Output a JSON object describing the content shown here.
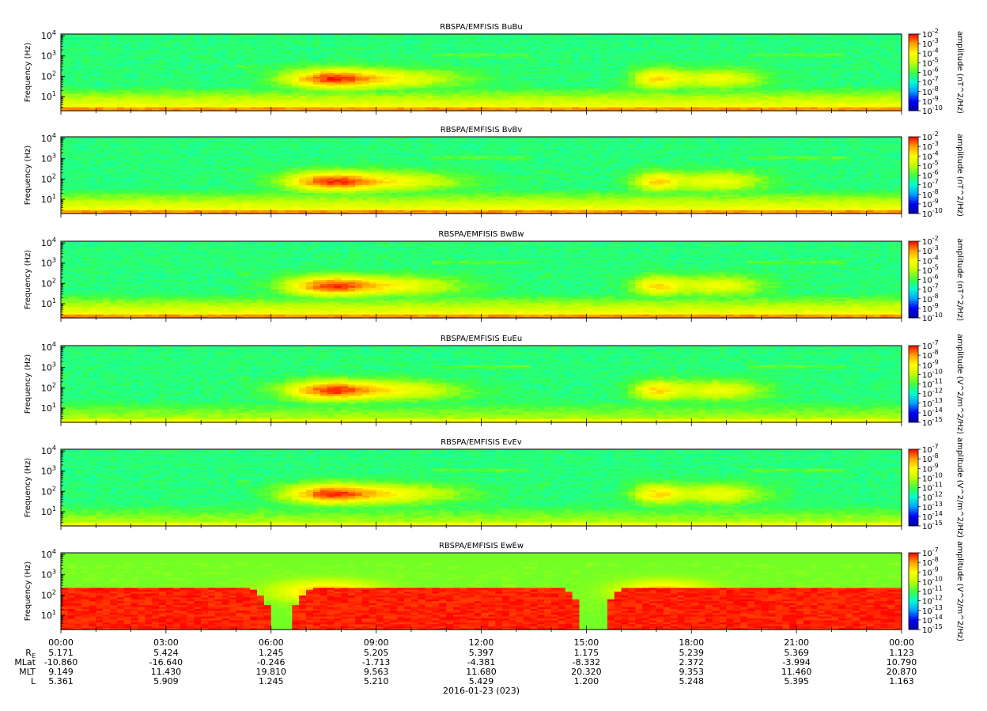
{
  "chart_data": {
    "type": "heatmap",
    "mission": "RBSPA/EMFISIS",
    "xlabel": "",
    "x_ticks": [
      "00:00",
      "03:00",
      "06:00",
      "09:00",
      "12:00",
      "15:00",
      "18:00",
      "21:00",
      "00:00"
    ],
    "x_range_hours": [
      0,
      24
    ],
    "ylabel": "Frequency (Hz)",
    "y_scale": "log",
    "y_range_hz": [
      2,
      12000
    ],
    "y_ticks": [
      {
        "base": "10",
        "exp": "4",
        "value": 10000
      },
      {
        "base": "10",
        "exp": "3",
        "value": 1000
      },
      {
        "base": "10",
        "exp": "2",
        "value": 100
      },
      {
        "base": "10",
        "exp": "1",
        "value": 10
      }
    ],
    "colormap": [
      "#0000a0",
      "#0000ff",
      "#00a0ff",
      "#00ffd0",
      "#40ff40",
      "#c0ff00",
      "#ffff00",
      "#ffa000",
      "#ff0000"
    ],
    "panels": [
      {
        "title": "RBSPA/EMFISIS  BuBu",
        "component": "BuBu",
        "kind": "B",
        "cbar_label": "amplitude (nT^2/Hz)",
        "cbar_ticks": [
          {
            "base": "10",
            "exp": "-2"
          },
          {
            "base": "10",
            "exp": "-3"
          },
          {
            "base": "10",
            "exp": "-4"
          },
          {
            "base": "10",
            "exp": "-5"
          },
          {
            "base": "10",
            "exp": "-6"
          },
          {
            "base": "10",
            "exp": "-7"
          },
          {
            "base": "10",
            "exp": "-8"
          },
          {
            "base": "10",
            "exp": "-9"
          },
          {
            "base": "10",
            "exp": "-10"
          }
        ]
      },
      {
        "title": "RBSPA/EMFISIS  BvBv",
        "component": "BvBv",
        "kind": "B",
        "cbar_label": "amplitude (nT^2/Hz)",
        "cbar_ticks": [
          {
            "base": "10",
            "exp": "-2"
          },
          {
            "base": "10",
            "exp": "-3"
          },
          {
            "base": "10",
            "exp": "-4"
          },
          {
            "base": "10",
            "exp": "-5"
          },
          {
            "base": "10",
            "exp": "-6"
          },
          {
            "base": "10",
            "exp": "-7"
          },
          {
            "base": "10",
            "exp": "-8"
          },
          {
            "base": "10",
            "exp": "-9"
          },
          {
            "base": "10",
            "exp": "-10"
          }
        ]
      },
      {
        "title": "RBSPA/EMFISIS  BwBw",
        "component": "BwBw",
        "kind": "B",
        "cbar_label": "amplitude (nT^2/Hz)",
        "cbar_ticks": [
          {
            "base": "10",
            "exp": "-2"
          },
          {
            "base": "10",
            "exp": "-3"
          },
          {
            "base": "10",
            "exp": "-4"
          },
          {
            "base": "10",
            "exp": "-5"
          },
          {
            "base": "10",
            "exp": "-6"
          },
          {
            "base": "10",
            "exp": "-7"
          },
          {
            "base": "10",
            "exp": "-8"
          },
          {
            "base": "10",
            "exp": "-9"
          },
          {
            "base": "10",
            "exp": "-10"
          }
        ]
      },
      {
        "title": "RBSPA/EMFISIS  EuEu",
        "component": "EuEu",
        "kind": "E",
        "cbar_label": "amplitude (V^2/m^2/Hz)",
        "cbar_ticks": [
          {
            "base": "10",
            "exp": "-7"
          },
          {
            "base": "10",
            "exp": "-8"
          },
          {
            "base": "10",
            "exp": "-9"
          },
          {
            "base": "10",
            "exp": "-10"
          },
          {
            "base": "10",
            "exp": "-11"
          },
          {
            "base": "10",
            "exp": "-12"
          },
          {
            "base": "10",
            "exp": "-13"
          },
          {
            "base": "10",
            "exp": "-14"
          },
          {
            "base": "10",
            "exp": "-15"
          }
        ]
      },
      {
        "title": "RBSPA/EMFISIS  EvEv",
        "component": "EvEv",
        "kind": "E",
        "cbar_label": "amplitude (V^2/m^2/Hz)",
        "cbar_ticks": [
          {
            "base": "10",
            "exp": "-7"
          },
          {
            "base": "10",
            "exp": "-8"
          },
          {
            "base": "10",
            "exp": "-9"
          },
          {
            "base": "10",
            "exp": "-10"
          },
          {
            "base": "10",
            "exp": "-11"
          },
          {
            "base": "10",
            "exp": "-12"
          },
          {
            "base": "10",
            "exp": "-13"
          },
          {
            "base": "10",
            "exp": "-14"
          },
          {
            "base": "10",
            "exp": "-15"
          }
        ]
      },
      {
        "title": "RBSPA/EMFISIS  EwEw",
        "component": "EwEw",
        "kind": "Ew",
        "cbar_label": "amplitude (V^2/m^2/Hz)",
        "cbar_ticks": [
          {
            "base": "10",
            "exp": "-7"
          },
          {
            "base": "10",
            "exp": "-8"
          },
          {
            "base": "10",
            "exp": "-9"
          },
          {
            "base": "10",
            "exp": "-10"
          },
          {
            "base": "10",
            "exp": "-11"
          },
          {
            "base": "10",
            "exp": "-12"
          },
          {
            "base": "10",
            "exp": "-13"
          },
          {
            "base": "10",
            "exp": "-14"
          },
          {
            "base": "10",
            "exp": "-15"
          }
        ]
      }
    ],
    "ephemeris": {
      "rows": [
        {
          "label": "R",
          "sub": "E",
          "values": [
            "5.171",
            "5.424",
            "1.245",
            "5.205",
            "5.397",
            "1.175",
            "5.239",
            "5.369",
            "1.123"
          ]
        },
        {
          "label": "MLat",
          "sub": "",
          "values": [
            "-10.860",
            "-16.640",
            "-0.246",
            "-1.713",
            "-4.381",
            "-8.332",
            "2.372",
            "-3.994",
            "10.790"
          ]
        },
        {
          "label": "MLT",
          "sub": "",
          "values": [
            "9.149",
            "11.430",
            "19.810",
            "9.563",
            "11.680",
            "20.320",
            "9.353",
            "11.460",
            "20.870"
          ]
        },
        {
          "label": "L",
          "sub": "",
          "values": [
            "5.361",
            "5.909",
            "1.245",
            "5.210",
            "5.429",
            "1.200",
            "5.248",
            "5.395",
            "1.163"
          ]
        }
      ],
      "date_label": "2016-01-23 (023)"
    }
  }
}
